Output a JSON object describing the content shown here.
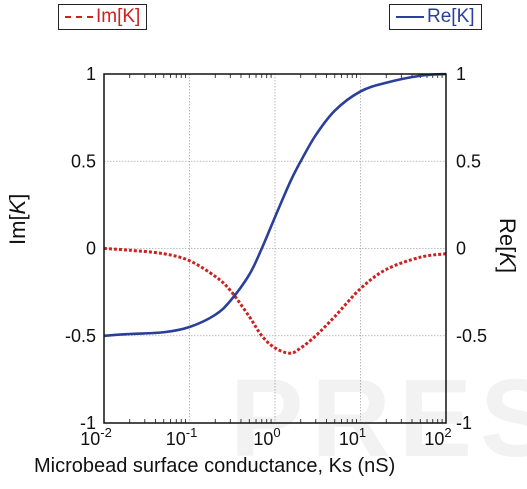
{
  "chart_data": {
    "type": "line",
    "xlabel": "Microbead surface conductance, Ks (nS)",
    "xscale": "log",
    "xlim": [
      0.01,
      100
    ],
    "x_ticks": [
      {
        "base": "10",
        "exp": "-2"
      },
      {
        "base": "10",
        "exp": "-1"
      },
      {
        "base": "10",
        "exp": "0"
      },
      {
        "base": "10",
        "exp": "1"
      },
      {
        "base": "10",
        "exp": "2"
      }
    ],
    "y_left": {
      "label_prefix": "Im[",
      "label_var": "K",
      "label_suffix": "]",
      "ylim": [
        -1,
        1
      ],
      "ticks": [
        "1",
        "0.5",
        "0",
        "-0.5",
        "-1"
      ]
    },
    "y_right": {
      "label_prefix": "Re[",
      "label_var": "K",
      "label_suffix": "]",
      "ylim": [
        -1,
        1
      ],
      "ticks": [
        "1",
        "0.5",
        "0",
        "-0.5",
        "-1"
      ]
    },
    "grid": true,
    "series": [
      {
        "name": "Im[K]",
        "axis": "left",
        "color": "#cc2222",
        "style": "dashed",
        "x": [
          0.01,
          0.02,
          0.05,
          0.1,
          0.2,
          0.3,
          0.5,
          0.7,
          1,
          1.5,
          2,
          3,
          5,
          10,
          20,
          50,
          100
        ],
        "y": [
          0,
          -0.01,
          -0.03,
          -0.07,
          -0.16,
          -0.24,
          -0.39,
          -0.5,
          -0.57,
          -0.6,
          -0.57,
          -0.5,
          -0.39,
          -0.23,
          -0.12,
          -0.05,
          -0.03
        ]
      },
      {
        "name": "Re[K]",
        "axis": "right",
        "color": "#2a3f9a",
        "style": "solid",
        "x": [
          0.01,
          0.02,
          0.05,
          0.1,
          0.2,
          0.3,
          0.5,
          0.7,
          1,
          1.5,
          2,
          3,
          5,
          10,
          20,
          50,
          100
        ],
        "y": [
          -0.5,
          -0.49,
          -0.48,
          -0.45,
          -0.38,
          -0.3,
          -0.15,
          0,
          0.18,
          0.38,
          0.5,
          0.65,
          0.79,
          0.9,
          0.95,
          0.99,
          1
        ]
      }
    ],
    "legend": [
      {
        "label": "Im[K]",
        "position": "top-left"
      },
      {
        "label": "Re[K]",
        "position": "top-right"
      }
    ]
  },
  "watermark": "PRESS"
}
